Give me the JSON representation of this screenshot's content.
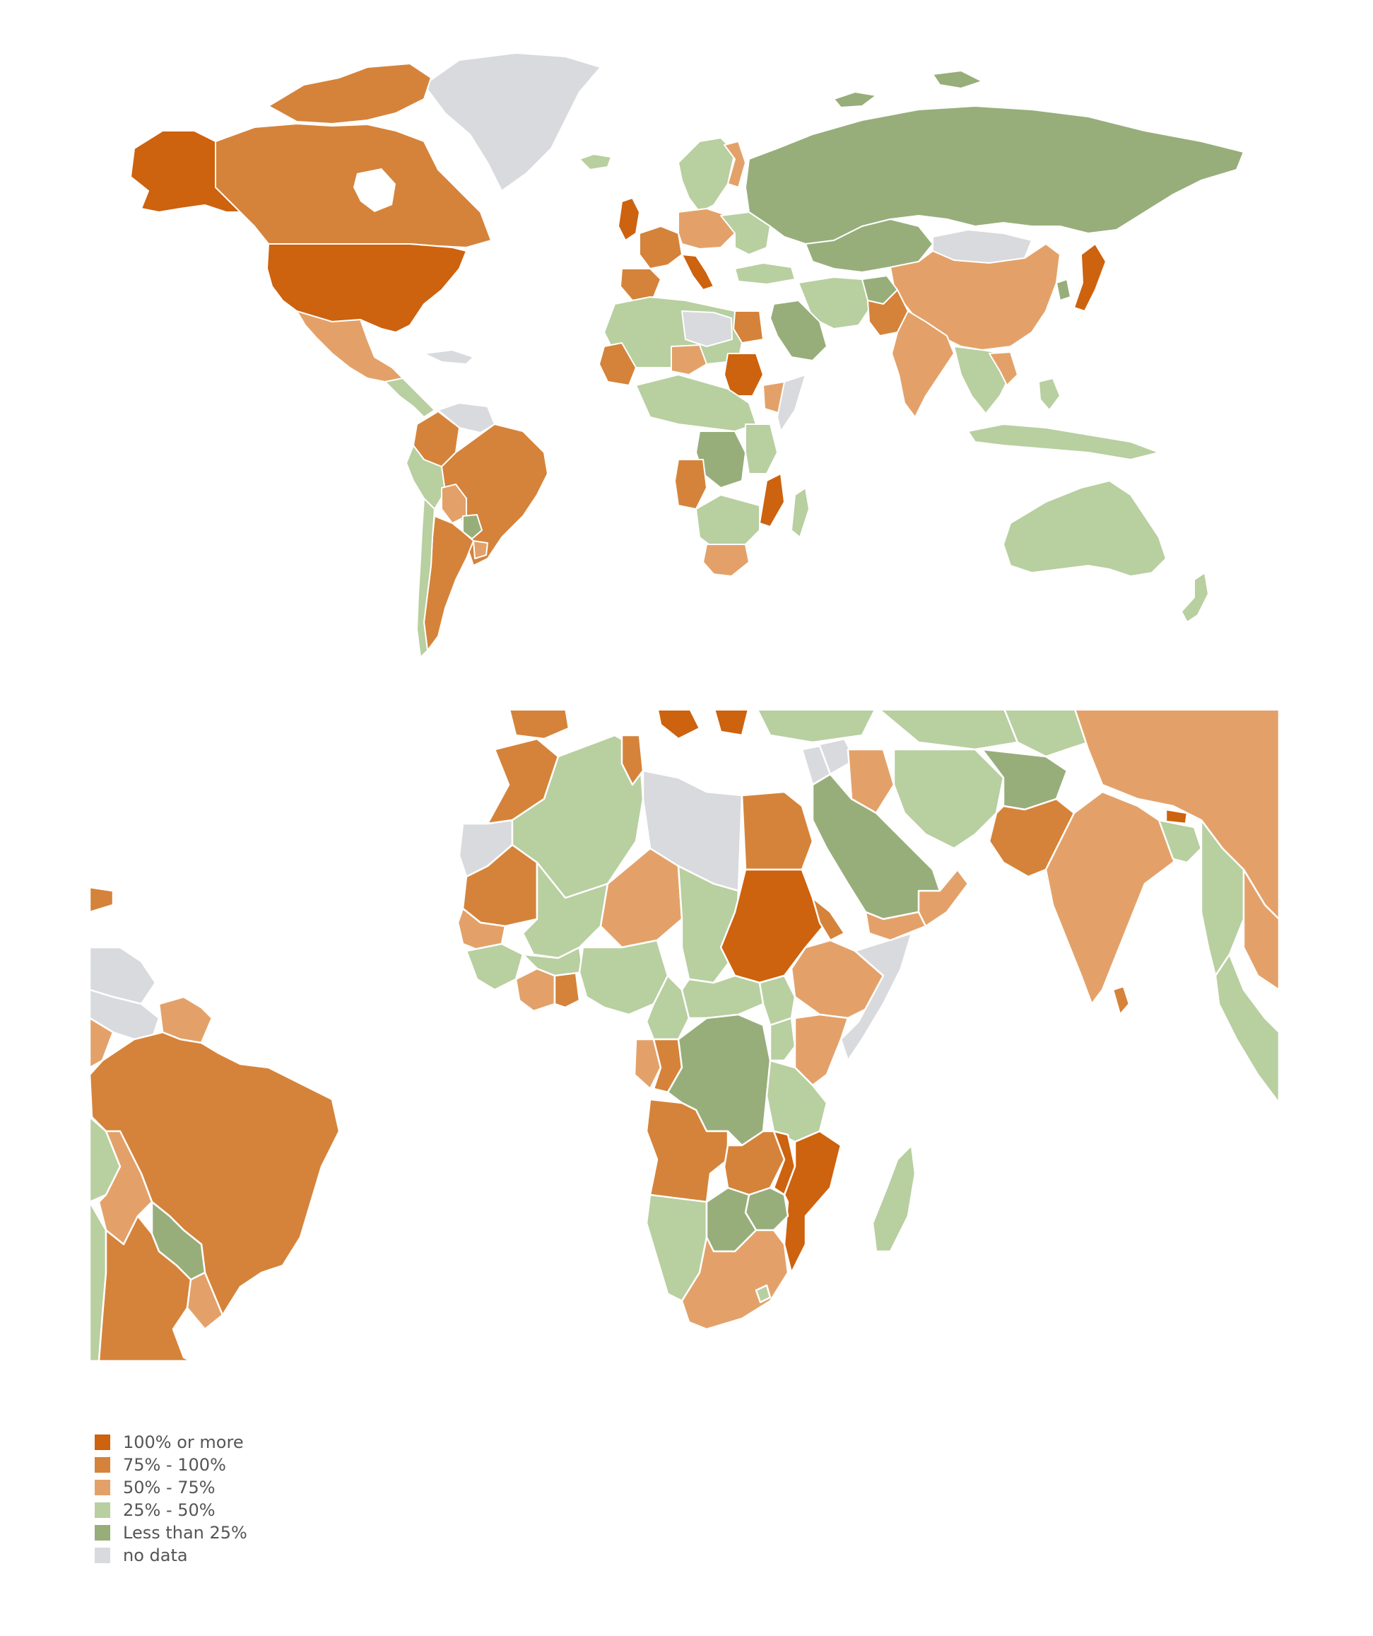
{
  "colors": {
    "c100": "#cd620f",
    "c75": "#d5833a",
    "c50": "#e3a169",
    "c25": "#b8cfa0",
    "c0": "#97ae7b",
    "nodata": "#d9dadd",
    "border": "#ffffff"
  },
  "legend": {
    "items": [
      {
        "label": "100% or more",
        "color": "#cd620f"
      },
      {
        "label": "75% - 100%",
        "color": "#d5833a"
      },
      {
        "label": "50% - 75%",
        "color": "#e3a169"
      },
      {
        "label": "25% - 50%",
        "color": "#b8cfa0"
      },
      {
        "label": "Less than 25%",
        "color": "#97ae7b"
      },
      {
        "label": "no data",
        "color": "#d9dadd"
      }
    ]
  }
}
